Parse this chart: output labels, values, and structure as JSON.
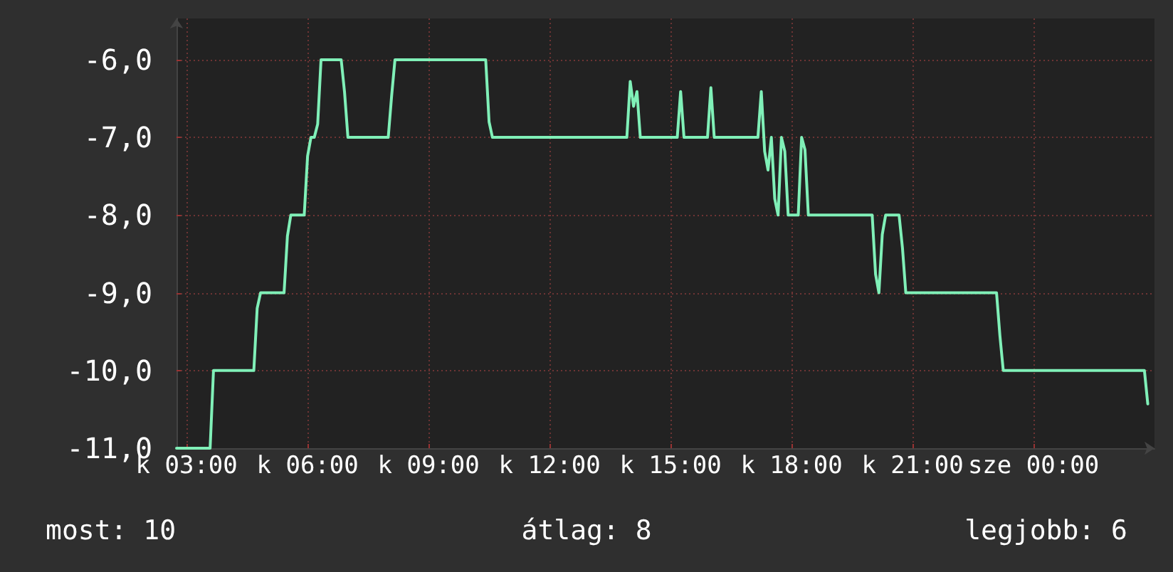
{
  "chart_data": {
    "type": "line",
    "annotations": [
      "most: 10",
      "átlag: 8",
      "legjobb: 6"
    ],
    "categories": [
      null,
      null,
      null,
      "k 03:00",
      null,
      null,
      null,
      null,
      null,
      null,
      null,
      null,
      null,
      null,
      null,
      null,
      null,
      null,
      null,
      null,
      null,
      null,
      null,
      null,
      null,
      null,
      null,
      null,
      null,
      null,
      null,
      null,
      null,
      null,
      null,
      null,
      null,
      null,
      null,
      "k 06:00",
      null,
      null,
      null,
      null,
      null,
      null,
      null,
      null,
      null,
      null,
      null,
      null,
      null,
      null,
      null,
      null,
      null,
      null,
      null,
      null,
      null,
      null,
      null,
      null,
      null,
      null,
      null,
      null,
      null,
      null,
      null,
      null,
      null,
      null,
      null,
      "k 09:00",
      null,
      null,
      null,
      null,
      null,
      null,
      null,
      null,
      null,
      null,
      null,
      null,
      null,
      null,
      null,
      null,
      null,
      null,
      null,
      null,
      null,
      null,
      null,
      null,
      null,
      null,
      null,
      null,
      null,
      null,
      null,
      null,
      null,
      null,
      null,
      "k 12:00",
      null,
      null,
      null,
      null,
      null,
      null,
      null,
      null,
      null,
      null,
      null,
      null,
      null,
      null,
      null,
      null,
      null,
      null,
      null,
      null,
      null,
      null,
      null,
      null,
      null,
      null,
      null,
      null,
      null,
      null,
      null,
      null,
      null,
      null,
      null,
      "k 15:00",
      null,
      null,
      null,
      null,
      null,
      null,
      null,
      null,
      null,
      null,
      null,
      null,
      null,
      null,
      null,
      null,
      null,
      null,
      null,
      null,
      null,
      null,
      null,
      null,
      null,
      null,
      null,
      null,
      null,
      null,
      null,
      null,
      null,
      null,
      null,
      "k 18:00",
      null,
      null,
      null,
      null,
      null,
      null,
      null,
      null,
      null,
      null,
      null,
      null,
      null,
      null,
      null,
      null,
      null,
      null,
      null,
      null,
      null,
      null,
      null,
      null,
      null,
      null,
      null,
      null,
      null,
      null,
      null,
      null,
      null,
      null,
      null,
      "k 21:00",
      null,
      null,
      null,
      null,
      null,
      null,
      null,
      null,
      null,
      null,
      null,
      null,
      null,
      null,
      null,
      null,
      null,
      null,
      null,
      null,
      null,
      null,
      null,
      null,
      null,
      null,
      null,
      null,
      null,
      null,
      null,
      null,
      null,
      null,
      null,
      "sze 00:00",
      null,
      null,
      null,
      null,
      null,
      null,
      null,
      null,
      null,
      null,
      null,
      null,
      null,
      null,
      null,
      null,
      null,
      null,
      null,
      null,
      null,
      null,
      null,
      null,
      null,
      null,
      null,
      null,
      null,
      null,
      null,
      null,
      null,
      null,
      null,
      null
    ],
    "series": [
      {
        "color": "#80f0b8",
        "values": [
          -11,
          -11,
          -11,
          -11,
          -11,
          -11,
          -11,
          -11,
          -11,
          -11,
          -11,
          -10,
          -10,
          -10,
          -10,
          -10,
          -10,
          -10,
          -10,
          -10,
          -10,
          -10,
          -10,
          -10,
          -9.2,
          -9,
          -9,
          -9,
          -9,
          -9,
          -9,
          -9,
          -9,
          -8.27,
          -8,
          -8,
          -8,
          -8,
          -8,
          -7.24,
          -7,
          -7,
          -6.83,
          -6,
          -6,
          -6,
          -6,
          -6,
          -6,
          -6,
          -6.42,
          -7,
          -7,
          -7,
          -7,
          -7,
          -7,
          -7,
          -7,
          -7,
          -7,
          -7,
          -7,
          -7,
          -6.47,
          -6,
          -6,
          -6,
          -6,
          -6,
          -6,
          -6,
          -6,
          -6,
          -6,
          -6,
          -6,
          -6,
          -6,
          -6,
          -6,
          -6,
          -6,
          -6,
          -6,
          -6,
          -6,
          -6,
          -6,
          -6,
          -6,
          -6,
          -6,
          -6.8,
          -7,
          -7,
          -7,
          -7,
          -7,
          -7,
          -7,
          -7,
          -7,
          -7,
          -7,
          -7,
          -7,
          -7,
          -7,
          -7,
          -7,
          -7,
          -7,
          -7,
          -7,
          -7,
          -7,
          -7,
          -7,
          -7,
          -7,
          -7,
          -7,
          -7,
          -7,
          -7,
          -7,
          -7,
          -7,
          -7,
          -7,
          -7,
          -7,
          -7,
          -7,
          -6.28,
          -6.6,
          -6.41,
          -7,
          -7,
          -7,
          -7,
          -7,
          -7,
          -7,
          -7,
          -7,
          -7,
          -7,
          -7,
          -6.41,
          -7,
          -7,
          -7,
          -7,
          -7,
          -7,
          -7,
          -7,
          -6.36,
          -7,
          -7,
          -7,
          -7,
          -7,
          -7,
          -7,
          -7,
          -7,
          -7,
          -7,
          -7,
          -7,
          -7,
          -6.41,
          -7.18,
          -7.42,
          -7,
          -7.79,
          -8,
          -7,
          -7.18,
          -8,
          -8,
          -8,
          -8,
          -7,
          -7.16,
          -8,
          -8,
          -8,
          -8,
          -8,
          -8,
          -8,
          -8,
          -8,
          -8,
          -8,
          -8,
          -8,
          -8,
          -8,
          -8,
          -8,
          -8,
          -8,
          -8,
          -8.76,
          -9,
          -8.25,
          -8,
          -8,
          -8,
          -8,
          -8,
          -8.42,
          -9,
          -9,
          -9,
          -9,
          -9,
          -9,
          -9,
          -9,
          -9,
          -9,
          -9,
          -9,
          -9,
          -9,
          -9,
          -9,
          -9,
          -9,
          -9,
          -9,
          -9,
          -9,
          -9,
          -9,
          -9,
          -9,
          -9,
          -9,
          -9.55,
          -10,
          -10,
          -10,
          -10,
          -10,
          -10,
          -10,
          -10,
          -10,
          -10,
          -10,
          -10,
          -10,
          -10,
          -10,
          -10,
          -10,
          -10,
          -10,
          -10,
          -10,
          -10,
          -10,
          -10,
          -10,
          -10,
          -10,
          -10,
          -10,
          -10,
          -10,
          -10,
          -10,
          -10,
          -10,
          -10,
          -10,
          -10,
          -10,
          -10,
          -10,
          -10,
          -10,
          -10.43,
          null,
          null
        ]
      }
    ],
    "ylim": [
      -11,
      -5.47
    ],
    "yticks": [
      {
        "value": -11,
        "label": "-11,0"
      },
      {
        "value": -10,
        "label": "-10,0"
      },
      {
        "value": -9,
        "label": "-9,0"
      },
      {
        "value": -8,
        "label": "-8,0"
      },
      {
        "value": -7,
        "label": "-7,0"
      },
      {
        "value": -6,
        "label": "-6,0"
      }
    ],
    "grid": true
  }
}
